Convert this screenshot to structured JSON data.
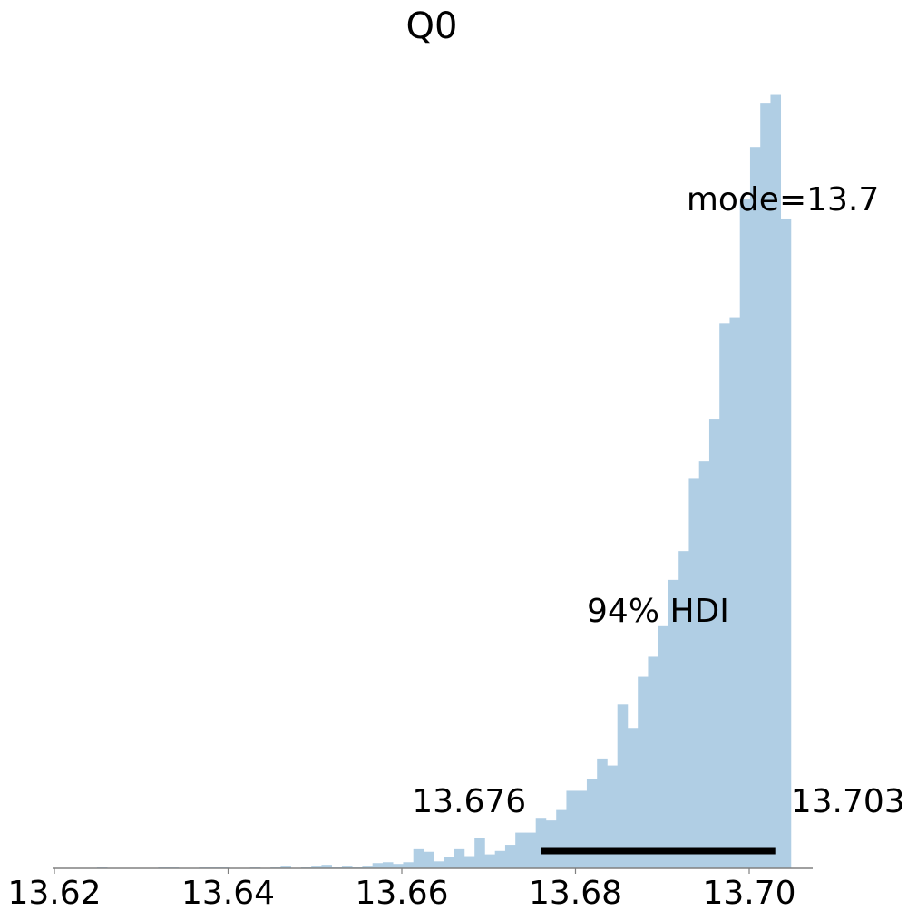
{
  "chart_data": {
    "type": "bar",
    "title": "Q0",
    "xlabel": "",
    "ylabel": "",
    "xlim": [
      13.62,
      13.7075
    ],
    "ylim": [
      0,
      900
    ],
    "x_ticks": [
      "13.62",
      "13.64",
      "13.66",
      "13.68",
      "13.70"
    ],
    "x_tick_values": [
      13.62,
      13.64,
      13.66,
      13.68,
      13.7
    ],
    "bin_width": 0.001175,
    "bin_start": 13.6202,
    "counts": [
      0,
      0,
      0,
      0,
      1,
      0,
      0,
      0,
      0,
      0,
      1,
      1,
      0,
      0,
      1,
      1,
      1,
      0,
      0,
      1,
      0,
      2,
      3,
      0,
      2,
      3,
      4,
      1,
      3,
      2,
      3,
      6,
      7,
      5,
      7,
      22,
      19,
      8,
      13,
      22,
      14,
      35,
      16,
      20,
      27,
      41,
      41,
      57,
      55,
      67,
      89,
      89,
      103,
      126,
      118,
      188,
      161,
      220,
      243,
      278,
      331,
      364,
      448,
      467,
      516,
      626,
      632,
      768,
      828,
      878,
      888,
      745
    ],
    "bar_color": "#b0cee4",
    "mode_label": "mode=13.7",
    "hdi_label": "94% HDI",
    "hdi_low": 13.676,
    "hdi_high": 13.703,
    "hdi_low_label": "13.676",
    "hdi_high_label": "13.703",
    "grid": false
  }
}
